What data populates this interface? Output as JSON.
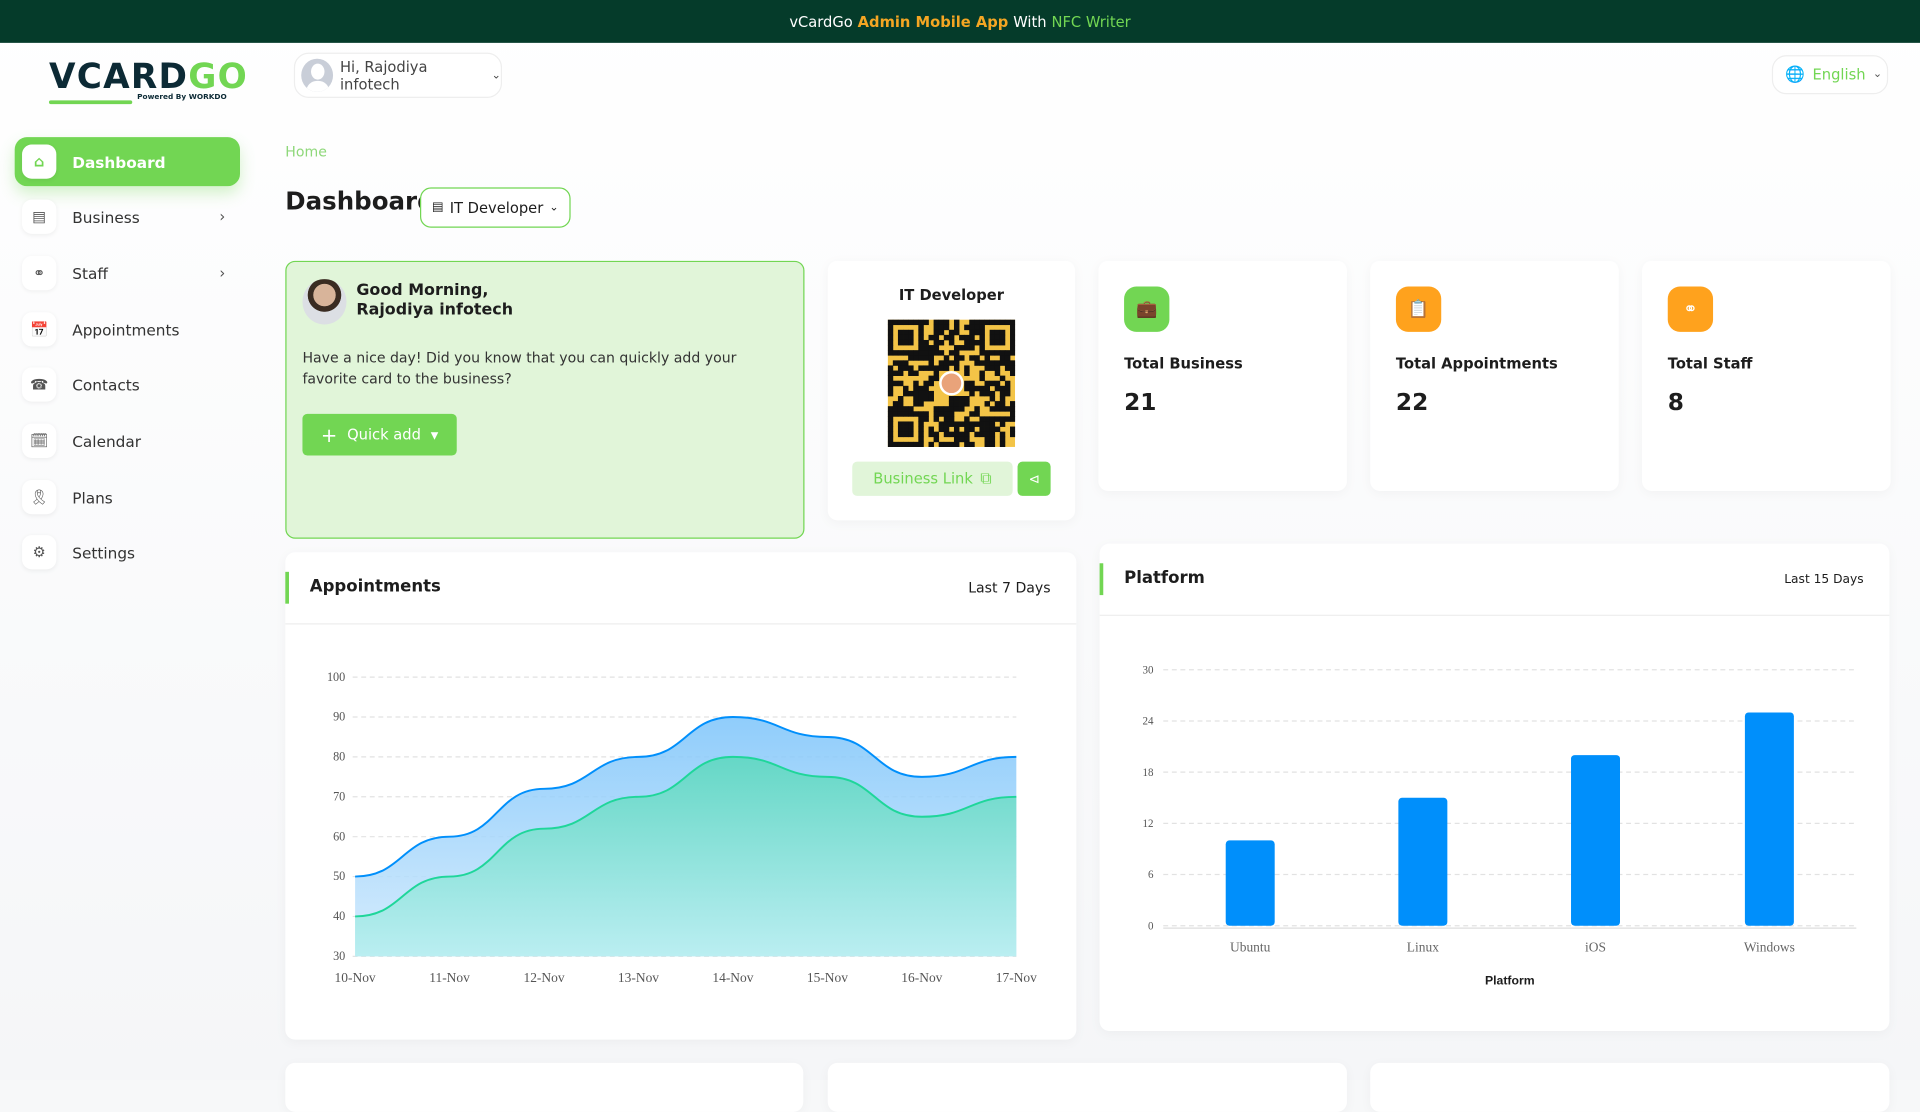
{
  "banner": {
    "part1": "vCardGo",
    "part2": "Admin Mobile App",
    "part3": "With",
    "part4": "NFC Writer"
  },
  "logo": {
    "text_a": "VCARD",
    "text_b": "GO",
    "powered": "Powered By WORKDO"
  },
  "header": {
    "greeting": "Hi, Rajodiya infotech",
    "language": "English"
  },
  "sidebar": {
    "items": [
      {
        "label": "Dashboard",
        "icon": "home-icon",
        "active": true
      },
      {
        "label": "Business",
        "icon": "card-icon",
        "chevron": true
      },
      {
        "label": "Staff",
        "icon": "users-icon",
        "chevron": true
      },
      {
        "label": "Appointments",
        "icon": "calendar-clock-icon"
      },
      {
        "label": "Contacts",
        "icon": "phone-icon"
      },
      {
        "label": "Calendar",
        "icon": "calendar-icon"
      },
      {
        "label": "Plans",
        "icon": "award-icon"
      },
      {
        "label": "Settings",
        "icon": "gear-icon"
      }
    ]
  },
  "page": {
    "breadcrumb": "Home",
    "title": "Dashboard",
    "business_select": "IT Developer"
  },
  "welcome": {
    "line1": "Good Morning,",
    "line2": "Rajodiya infotech",
    "message": "Have a nice day! Did you know that you can quickly add your favorite card to the business?",
    "button": "Quick add"
  },
  "qr": {
    "title": "IT Developer",
    "link_label": "Business Link"
  },
  "stats": [
    {
      "label": "Total Business",
      "value": "21",
      "color": "#72d653",
      "icon": "briefcase-icon"
    },
    {
      "label": "Total Appointments",
      "value": "22",
      "color": "#ffa21d",
      "icon": "clipboard-check-icon"
    },
    {
      "label": "Total Staff",
      "value": "8",
      "color": "#ffa21d",
      "icon": "users-icon"
    }
  ],
  "appointments": {
    "title": "Appointments",
    "range": "Last 7 Days"
  },
  "platform": {
    "title": "Platform",
    "range": "Last 15 Days"
  },
  "colors": {
    "accent": "#72d653",
    "banner": "#053b2a",
    "blue": "#008ffb",
    "teal": "#00e396"
  },
  "chart_data": [
    {
      "type": "area",
      "categories": [
        "10-Nov",
        "11-Nov",
        "12-Nov",
        "13-Nov",
        "14-Nov",
        "15-Nov",
        "16-Nov",
        "17-Nov"
      ],
      "series": [
        {
          "values": [
            50,
            60,
            72,
            80,
            90,
            85,
            75,
            80
          ]
        },
        {
          "values": [
            40,
            50,
            62,
            70,
            80,
            75,
            65,
            70
          ]
        }
      ],
      "ylim": [
        30,
        100
      ],
      "yticks": [
        30,
        40,
        50,
        60,
        70,
        80,
        90,
        100
      ],
      "grid": true
    },
    {
      "type": "bar",
      "categories": [
        "Ubuntu",
        "Linux",
        "iOS",
        "Windows"
      ],
      "values": [
        10,
        15,
        20,
        25
      ],
      "xlabel": "Platform",
      "ylim": [
        0,
        30
      ],
      "yticks": [
        0,
        6,
        12,
        18,
        24,
        30
      ],
      "grid": true
    }
  ]
}
